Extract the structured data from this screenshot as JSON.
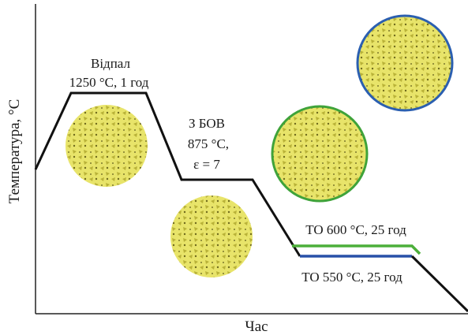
{
  "axes": {
    "y_label": "Температура, °C",
    "x_label": "Час"
  },
  "stages": [
    {
      "lines": [
        "Відпал",
        "1250 °C, 1 год"
      ]
    },
    {
      "lines": [
        "З БОВ",
        "875 °C,",
        "ε = 7"
      ]
    },
    {
      "lines": [
        "ТО 600 °C, 25 год"
      ]
    },
    {
      "lines": [
        "ТО 550 °C, 25 год"
      ]
    }
  ]
}
